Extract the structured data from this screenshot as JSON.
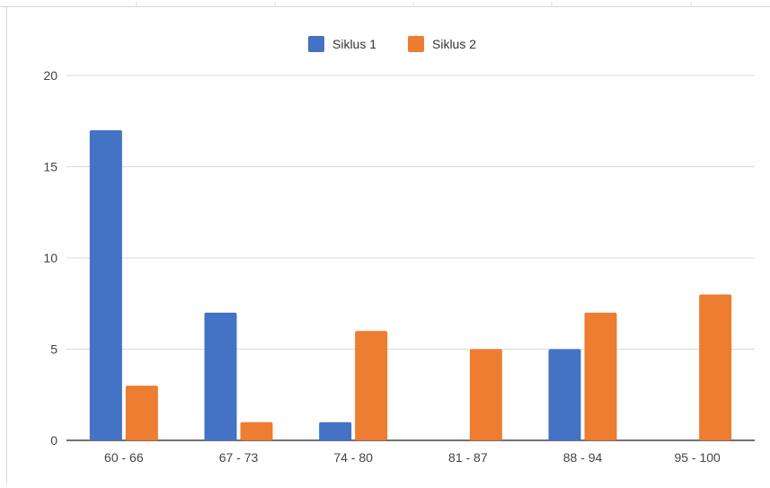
{
  "chart_data": {
    "type": "bar",
    "categories": [
      "60 - 66",
      "67 - 73",
      "74 - 80",
      "81 - 87",
      "88 - 94",
      "95 - 100"
    ],
    "series": [
      {
        "name": "Siklus 1",
        "color": "#4472c4",
        "values": [
          17,
          7,
          1,
          0,
          5,
          0
        ]
      },
      {
        "name": "Siklus 2",
        "color": "#ed7d31",
        "values": [
          3,
          1,
          6,
          5,
          7,
          8
        ]
      }
    ],
    "yticks": [
      "0",
      "5",
      "10",
      "15",
      "20"
    ],
    "ylim": [
      0,
      20
    ],
    "grid": true,
    "legend_position": "top-center",
    "title": "",
    "xlabel": "",
    "ylabel": ""
  }
}
